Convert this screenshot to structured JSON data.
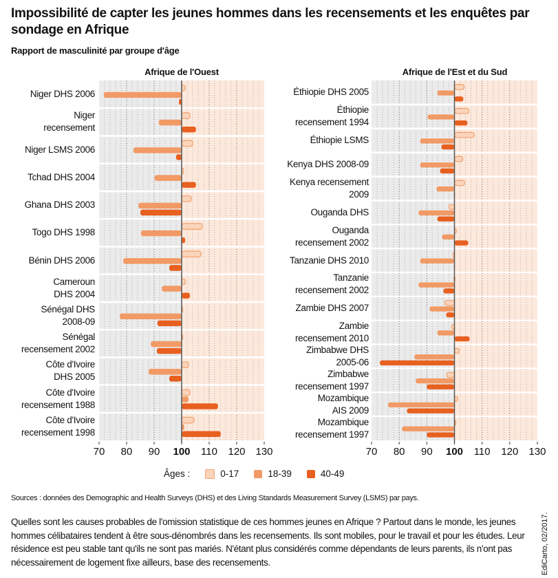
{
  "title": "Impossibilité de capter les jeunes hommes dans les recensements et les enquêtes par sondage en Afrique",
  "subtitle": "Rapport de masculinité par groupe d'âge",
  "legend": {
    "label": "Âges :",
    "items": [
      "0-17",
      "18-39",
      "40-49"
    ]
  },
  "colors": {
    "0-17": "#fad5bb",
    "0-17_stroke": "#f3a06c",
    "18-39": "#f29a65",
    "40-49": "#e8601f",
    "bg_below_100": "#ebebeb",
    "bg_above_100": "#fde9dc"
  },
  "sources": "Sources : données des Demographic and Health Surveys (DHS) et des Living Standards Measurement Survey (LSMS) par pays.",
  "note": "Quelles sont les causes probables de l'omission statistique de ces hommes jeunes en Afrique ? Partout dans le monde, les jeunes hommes célibataires tendent à être sous-dénombrés dans les recensements. Ils sont mobiles, pour le travail et pour les études. Leur résidence est peu stable tant qu'ils ne sont pas mariés. N'étant plus considérés comme dépendants de leurs parents, ils n'ont pas nécessairement de logement fixe ailleurs, base des recensements.",
  "credit": "EdiCarto, 02/2017.",
  "chart_data": [
    {
      "type": "bar",
      "orientation": "horizontal",
      "title": "Afrique de l'Ouest",
      "baseline": 100,
      "xlim": [
        70,
        130
      ],
      "xticks": [
        70,
        80,
        90,
        100,
        110,
        120,
        130
      ],
      "grid": true,
      "series_names": [
        "0-17",
        "18-39",
        "40-49"
      ],
      "categories": [
        "Niger DHS 2006",
        "Niger\nrecensement",
        "Niger LSMS 2006",
        "Tchad DHS 2004",
        "Ghana DHS 2003",
        "Togo DHS 1998",
        "Bénin DHS 2006",
        "Cameroun\nDHS 2004",
        "Sénégal DHS\n2008-09",
        "Sénégal\nrecensement 2002",
        "Côte d'Ivoire\nDHS 2005",
        "Côte d'Ivoire\nrecensement 1988",
        "Côte d'Ivoire\nrecensement 1998"
      ],
      "values": [
        [
          101.3,
          71.7,
          99.0
        ],
        [
          103.0,
          91.7,
          105.2
        ],
        [
          104.0,
          82.5,
          98.0
        ],
        [
          100.7,
          90.2,
          105.2
        ],
        [
          103.5,
          84.3,
          85.0
        ],
        [
          107.5,
          85.2,
          101.3
        ],
        [
          107.0,
          78.8,
          95.5
        ],
        [
          101.3,
          92.8,
          103.0
        ],
        [
          100.3,
          77.5,
          91.2
        ],
        [
          100.2,
          88.8,
          91.0
        ],
        [
          102.5,
          88.0,
          95.5
        ],
        [
          103.0,
          102.5,
          113.2
        ],
        [
          104.5,
          101.0,
          114.2
        ]
      ]
    },
    {
      "type": "bar",
      "orientation": "horizontal",
      "title": "Afrique de l'Est et du Sud",
      "baseline": 100,
      "xlim": [
        70,
        130
      ],
      "xticks": [
        70,
        80,
        90,
        100,
        110,
        120,
        130
      ],
      "grid": true,
      "series_names": [
        "0-17",
        "18-39",
        "40-49"
      ],
      "categories": [
        "Éthiopie DHS 2005",
        "Éthiopie\nrecensement 1994",
        "Éthiopie LSMS",
        "Kenya DHS 2008-09",
        "Kenya recensement\n2009",
        "Ouganda DHS",
        "Ouganda\nrecensement 2002",
        "Tanzanie DHS 2010",
        "Tanzanie\nrecensement 2002",
        "Zambie DHS 2007",
        "Zambie\nrecensement 2010",
        "Zimbabwe DHS\n2005-06",
        "Zimbabwe\nrecensement 1997",
        "Mozambique\nAIS 2009",
        "Mozambique\nrecensement 1997"
      ],
      "values": [
        [
          103.5,
          93.8,
          103.2
        ],
        [
          105.2,
          90.3,
          104.7
        ],
        [
          107.2,
          87.6,
          95.3
        ],
        [
          103.0,
          87.6,
          94.8
        ],
        [
          103.7,
          93.5,
          99.8
        ],
        [
          98.0,
          87.0,
          93.8
        ],
        [
          100.7,
          95.5,
          105.0
        ],
        [
          99.5,
          87.6,
          99.8
        ],
        [
          99.8,
          87.0,
          96.0
        ],
        [
          96.5,
          91.0,
          97.0
        ],
        [
          99.0,
          93.8,
          105.5
        ],
        [
          101.7,
          85.5,
          73.0
        ],
        [
          97.2,
          86.0,
          90.0
        ],
        [
          101.2,
          76.0,
          82.8
        ],
        [
          100.5,
          81.0,
          90.0
        ]
      ]
    }
  ]
}
